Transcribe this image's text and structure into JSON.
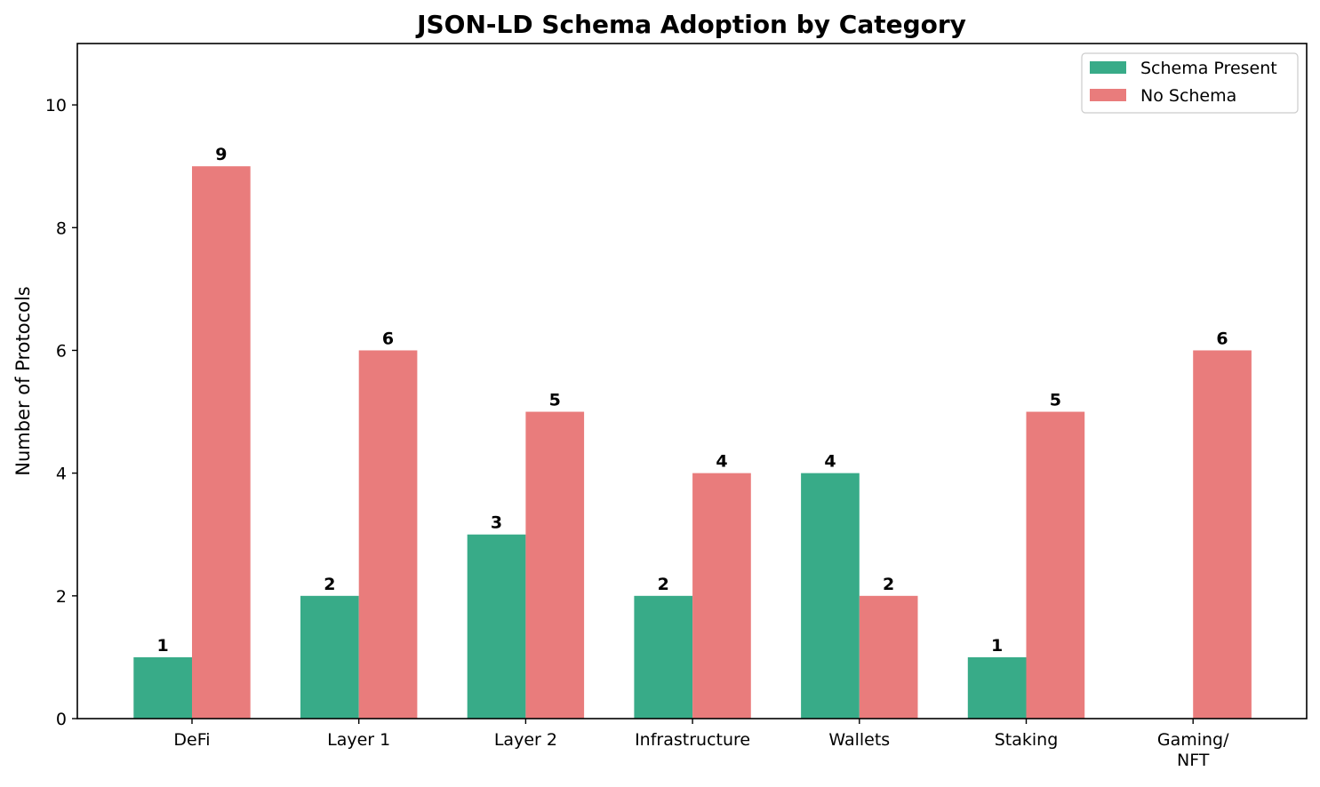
{
  "chart_data": {
    "type": "bar",
    "title": "JSON-LD Schema Adoption by Category",
    "xlabel": "",
    "ylabel": "Number of Protocols",
    "categories": [
      "DeFi",
      "Layer 1",
      "Layer 2",
      "Infrastructure",
      "Wallets",
      "Staking",
      "Gaming/\nNFT"
    ],
    "series": [
      {
        "name": "Schema Present",
        "color": "#38ab88",
        "values": [
          1,
          2,
          3,
          2,
          4,
          1,
          0
        ]
      },
      {
        "name": "No Schema",
        "color": "#e97c7c",
        "values": [
          9,
          6,
          5,
          4,
          2,
          5,
          6
        ]
      }
    ],
    "ylim": [
      0,
      11
    ],
    "yticks": [
      0,
      2,
      4,
      6,
      8,
      10
    ],
    "grid": false,
    "legend_position": "top-right"
  }
}
